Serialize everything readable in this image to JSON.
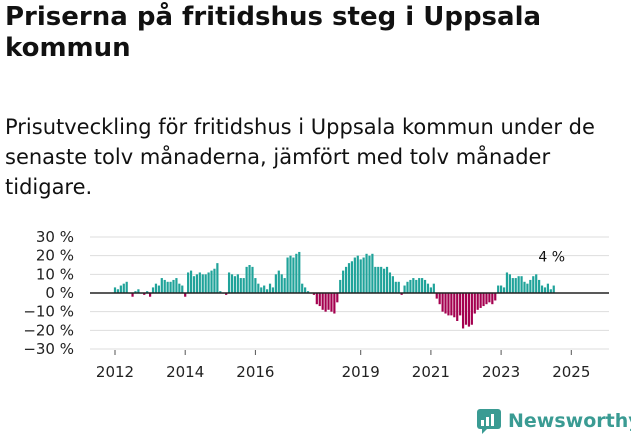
{
  "header": {
    "title": "Priserna på fritidshus steg i Uppsala kommun",
    "subtitle": "Prisutveckling för fritidshus i Uppsala kommun under de senaste tolv månaderna, jämfört med tolv månader tidigare."
  },
  "brand": {
    "name": "Newsworthy"
  },
  "colors": {
    "positive": "#20a39a",
    "negative": "#a4004f",
    "grid": "#dddddd",
    "zero": "#222222"
  },
  "chart_data": {
    "type": "bar",
    "title": "Priserna på fritidshus steg i Uppsala kommun",
    "ylabel": "",
    "xlabel": "",
    "ylim": [
      -30,
      30
    ],
    "y_ticks": [
      30,
      20,
      10,
      0,
      -10,
      -20,
      -30
    ],
    "y_tick_labels": [
      "30 %",
      "20 %",
      "10 %",
      "0 %",
      "−10 %",
      "−20 %",
      "−30 %"
    ],
    "x_start": 2012.0,
    "x_step_months": 1,
    "x_ticks": [
      2012,
      2014,
      2016,
      2019,
      2021,
      2023,
      2025
    ],
    "annotation": {
      "label": "4 %",
      "value": 4
    },
    "values": [
      3,
      2,
      4,
      5,
      6,
      0,
      -2,
      1,
      2,
      0,
      -1,
      1,
      -2,
      3,
      5,
      4,
      8,
      7,
      6,
      6,
      7,
      8,
      5,
      4,
      -2,
      11,
      12,
      9,
      10,
      11,
      10,
      10,
      11,
      12,
      13,
      16,
      1,
      0,
      -1,
      11,
      10,
      9,
      10,
      8,
      8,
      14,
      15,
      14,
      8,
      5,
      3,
      4,
      2,
      5,
      3,
      10,
      12,
      10,
      8,
      19,
      20,
      19,
      21,
      22,
      5,
      3,
      1,
      0,
      -1,
      -6,
      -7,
      -9,
      -10,
      -9,
      -10,
      -11,
      -5,
      7,
      12,
      14,
      16,
      17,
      19,
      20,
      18,
      19,
      21,
      20,
      21,
      14,
      14,
      14,
      13,
      14,
      11,
      9,
      6,
      6,
      -1,
      4,
      6,
      7,
      8,
      7,
      8,
      8,
      7,
      5,
      3,
      5,
      -3,
      -6,
      -10,
      -11,
      -12,
      -12,
      -13,
      -15,
      -12,
      -19,
      -17,
      -18,
      -17,
      -11,
      -9,
      -8,
      -7,
      -6,
      -5,
      -6,
      -4,
      4,
      4,
      3,
      11,
      10,
      8,
      8,
      9,
      9,
      6,
      5,
      7,
      9,
      10,
      7,
      4,
      3,
      5,
      2,
      4
    ]
  }
}
